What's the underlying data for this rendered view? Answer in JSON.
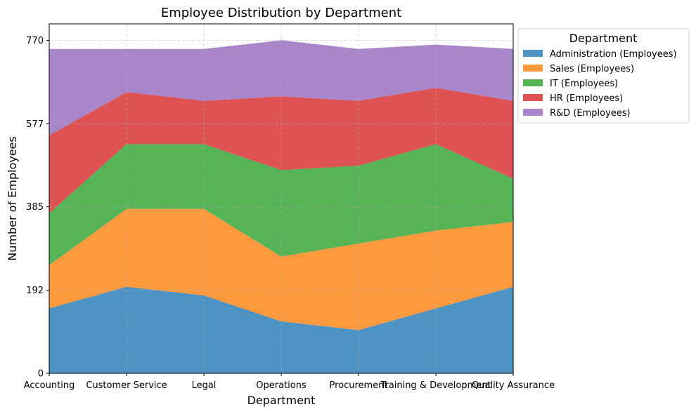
{
  "chart_data": {
    "type": "area",
    "stacked": true,
    "title": "Employee Distribution by Department",
    "xlabel": "Department",
    "ylabel": "Number of Employees",
    "categories": [
      "Accounting",
      "Customer Service",
      "Legal",
      "Operations",
      "Procurement",
      "Training & Development",
      "Quality Assurance"
    ],
    "yticks": [
      0,
      192,
      385,
      577,
      770
    ],
    "ylim": [
      0,
      808
    ],
    "grid": true,
    "legend": {
      "title": "Department",
      "placement": "outside-top-right"
    },
    "series": [
      {
        "name": "Administration (Employees)",
        "color": "#1f77b4",
        "values": [
          150,
          200,
          180,
          120,
          100,
          150,
          200
        ]
      },
      {
        "name": "Sales (Employees)",
        "color": "#ff7f0e",
        "values": [
          100,
          180,
          200,
          150,
          200,
          180,
          150
        ]
      },
      {
        "name": "IT (Employees)",
        "color": "#2ca02c",
        "values": [
          120,
          150,
          150,
          200,
          180,
          200,
          100
        ]
      },
      {
        "name": "HR (Employees)",
        "color": "#d62728",
        "values": [
          180,
          120,
          100,
          170,
          150,
          130,
          180
        ]
      },
      {
        "name": "R&D (Employees)",
        "color": "#9467bd",
        "values": [
          200,
          100,
          120,
          130,
          120,
          100,
          120
        ]
      }
    ]
  }
}
